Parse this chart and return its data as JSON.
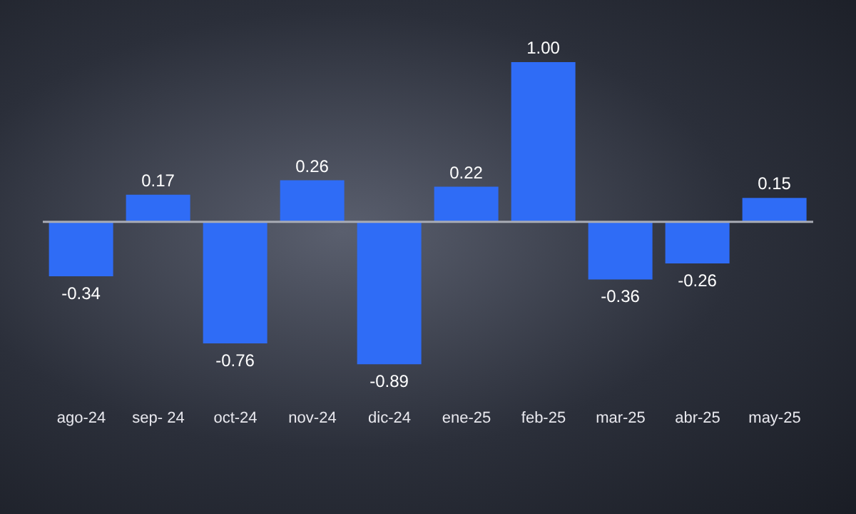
{
  "chart_data": {
    "type": "bar",
    "categories": [
      "ago-24",
      "sep- 24",
      "oct-24",
      "nov-24",
      "dic-24",
      "ene-25",
      "feb-25",
      "mar-25",
      "abr-25",
      "may-25"
    ],
    "values": [
      -0.34,
      0.17,
      -0.76,
      0.26,
      -0.89,
      0.22,
      1.0,
      -0.36,
      -0.26,
      0.15
    ],
    "value_labels": [
      "-0.34",
      "0.17",
      "-0.76",
      "0.26",
      "-0.89",
      "0.22",
      "1.00",
      "-0.36",
      "-0.26",
      "0.15"
    ],
    "color": "#2f6cf6",
    "grid": false,
    "legend": false
  }
}
